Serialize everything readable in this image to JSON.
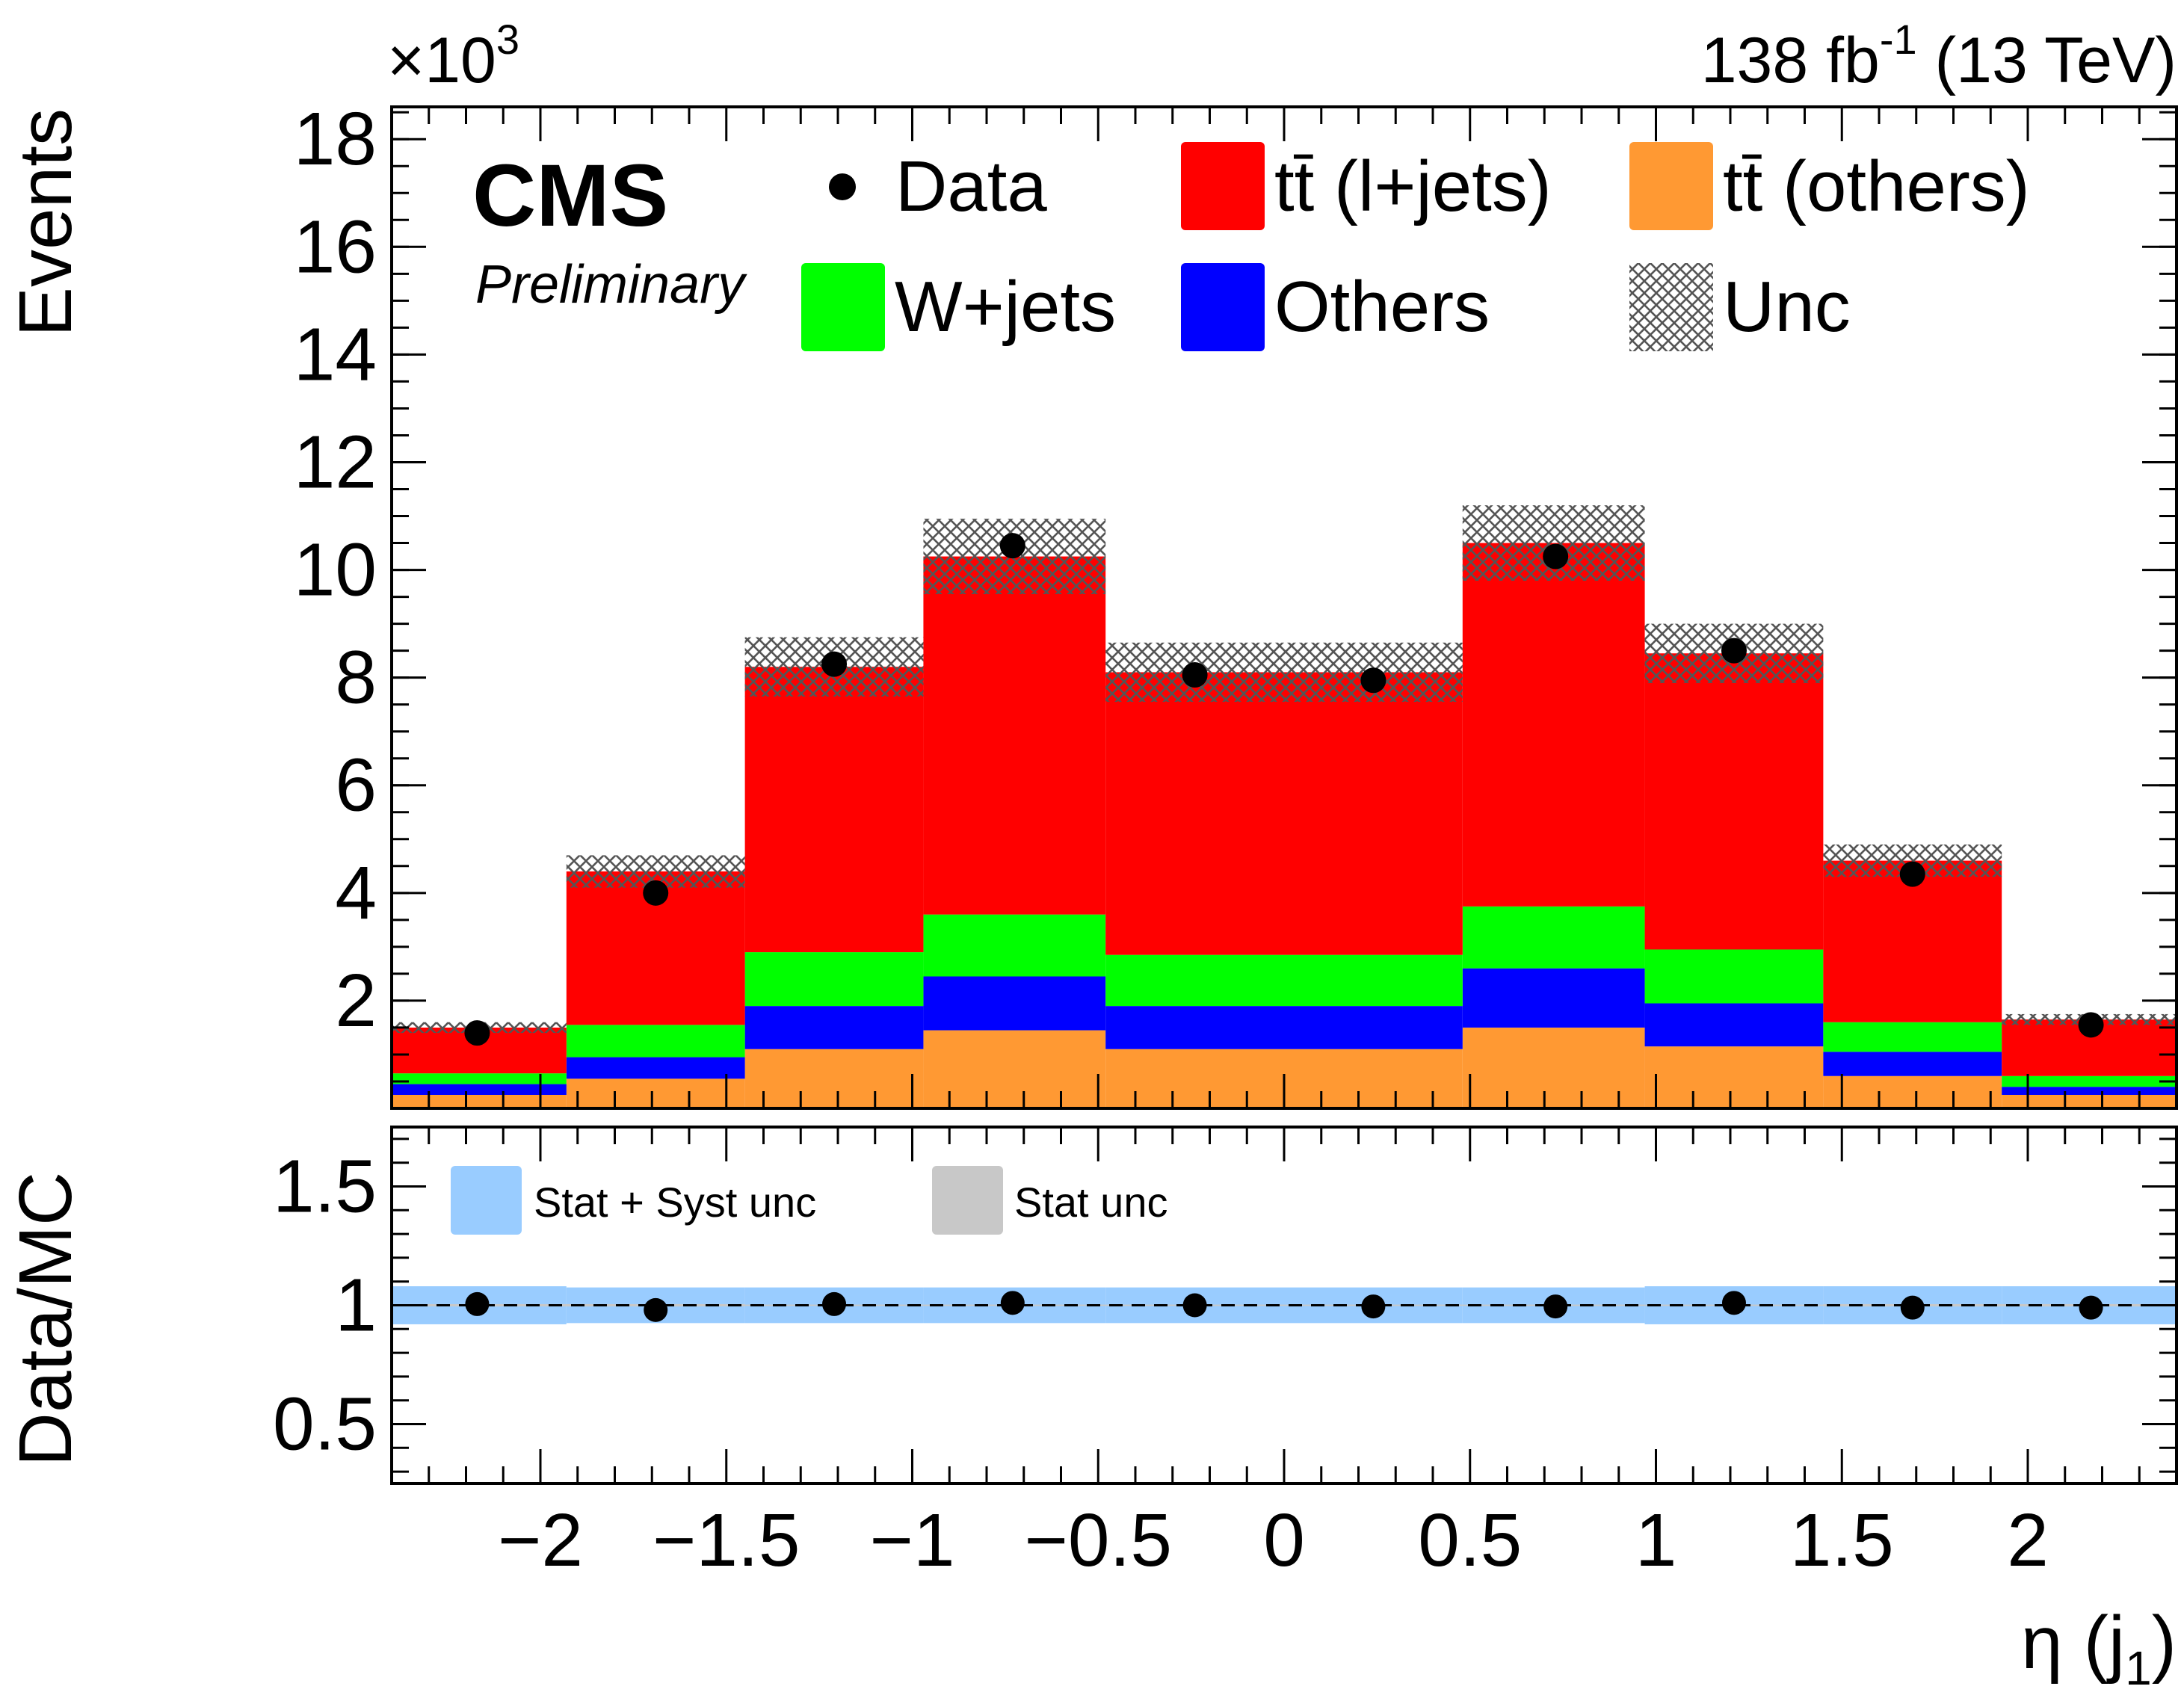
{
  "chart_data": {
    "type": "bar",
    "stacked": true,
    "title_right": "(13 TeV)",
    "lumi_value": "138 fb",
    "lumi_exp": "-1",
    "experiment": "CMS",
    "status": "Preliminary",
    "ylabel": "Events",
    "yscale": "×10",
    "yscale_exp": "3",
    "ylim": [
      0,
      18.6
    ],
    "yticks": [
      "2",
      "4",
      "6",
      "8",
      "10",
      "12",
      "14",
      "16",
      "18"
    ],
    "ytick_values": [
      2,
      4,
      6,
      8,
      10,
      12,
      14,
      16,
      18
    ],
    "xlabel": "η (j",
    "xlabel_sub": "1",
    "xlabel_close": ")",
    "xlim": [
      -2.4,
      2.4
    ],
    "xticks": [
      "−2",
      "−1.5",
      "−1",
      "−0.5",
      "0",
      "0.5",
      "1",
      "1.5",
      "2"
    ],
    "xtick_values": [
      -2,
      -1.5,
      -1,
      -0.5,
      0,
      0.5,
      1,
      1.5,
      2
    ],
    "bin_edges": [
      -2.4,
      -1.93,
      -1.45,
      -0.97,
      -0.48,
      0.0,
      0.48,
      0.97,
      1.45,
      1.93,
      2.4
    ],
    "series": [
      {
        "name": "tt̄ (others)",
        "color": "#ff9933",
        "values": [
          0.25,
          0.55,
          1.1,
          1.45,
          1.1,
          1.1,
          1.5,
          1.15,
          0.6,
          0.25
        ]
      },
      {
        "name": "Others",
        "color": "#0000ff",
        "values": [
          0.2,
          0.4,
          0.8,
          1.0,
          0.8,
          0.8,
          1.1,
          0.8,
          0.45,
          0.15
        ]
      },
      {
        "name": "W+jets",
        "color": "#00ff00",
        "values": [
          0.2,
          0.6,
          1.0,
          1.15,
          0.95,
          0.95,
          1.15,
          1.0,
          0.55,
          0.2
        ]
      },
      {
        "name": "tt̄ (l+jets)",
        "color": "#ff0000",
        "values": [
          0.85,
          2.85,
          5.3,
          6.65,
          5.25,
          5.25,
          6.75,
          5.5,
          3.0,
          1.05
        ]
      }
    ],
    "unc_band": [
      0.1,
      0.3,
      0.55,
      0.7,
      0.55,
      0.55,
      0.7,
      0.55,
      0.3,
      0.1
    ],
    "data_x": [
      -2.17,
      -1.69,
      -1.21,
      -0.73,
      -0.24,
      0.24,
      0.73,
      1.21,
      1.69,
      2.17
    ],
    "data_values": [
      1.4,
      4.0,
      8.25,
      10.45,
      8.05,
      7.95,
      10.25,
      8.5,
      4.35,
      1.55
    ],
    "legend": [
      {
        "label": "Data",
        "kind": "marker"
      },
      {
        "label": "tt̄ (l+jets)",
        "kind": "fill",
        "color": "#ff0000"
      },
      {
        "label": "tt̄ (others)",
        "kind": "fill",
        "color": "#ff9933"
      },
      {
        "label": "W+jets",
        "kind": "fill",
        "color": "#00ff00"
      },
      {
        "label": "Others",
        "kind": "fill",
        "color": "#0000ff"
      },
      {
        "label": "Unc",
        "kind": "hatch"
      }
    ],
    "ratio": {
      "ylabel": "Data/MC",
      "ylim": [
        0.25,
        1.75
      ],
      "yticks": [
        "0.5",
        "1",
        "1.5"
      ],
      "ytick_values": [
        0.5,
        1.0,
        1.5
      ],
      "values": [
        1.005,
        0.98,
        1.005,
        1.01,
        1.0,
        0.995,
        0.995,
        1.01,
        0.99,
        0.99
      ],
      "band_stat_syst": [
        0.08,
        0.075,
        0.075,
        0.075,
        0.075,
        0.075,
        0.075,
        0.08,
        0.08,
        0.08
      ],
      "band_stat": [
        0.005,
        0.005,
        0.003,
        0.003,
        0.003,
        0.003,
        0.003,
        0.003,
        0.005,
        0.005
      ],
      "legend": [
        {
          "label": "Stat + Syst unc",
          "color": "#99ccff"
        },
        {
          "label": "Stat unc",
          "color": "#c8c8c8"
        }
      ]
    }
  }
}
